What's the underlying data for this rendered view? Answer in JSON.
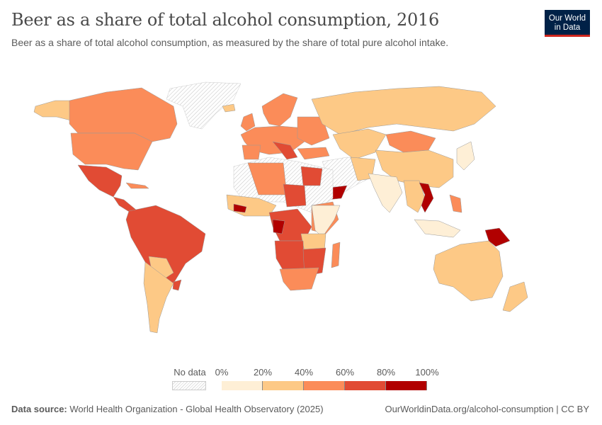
{
  "header": {
    "title": "Beer as a share of total alcohol consumption, 2016",
    "subtitle": "Beer as a share of total alcohol consumption, as measured by the share of total pure alcohol intake.",
    "logo_line1": "Our World",
    "logo_line2": "in Data"
  },
  "legend": {
    "no_data_label": "No data",
    "ticks": [
      "0%",
      "20%",
      "40%",
      "60%",
      "80%",
      "100%"
    ],
    "bins": [
      {
        "range": [
          0,
          20
        ],
        "color": "#feefd6"
      },
      {
        "range": [
          20,
          40
        ],
        "color": "#fdc986"
      },
      {
        "range": [
          40,
          60
        ],
        "color": "#fb8c59"
      },
      {
        "range": [
          60,
          80
        ],
        "color": "#e14b34"
      },
      {
        "range": [
          80,
          100
        ],
        "color": "#b10000"
      }
    ]
  },
  "footer": {
    "source_label": "Data source:",
    "source_text": "World Health Organization - Global Health Observatory (2025)",
    "link": "OurWorldinData.org/alcohol-consumption | CC BY"
  }
}
